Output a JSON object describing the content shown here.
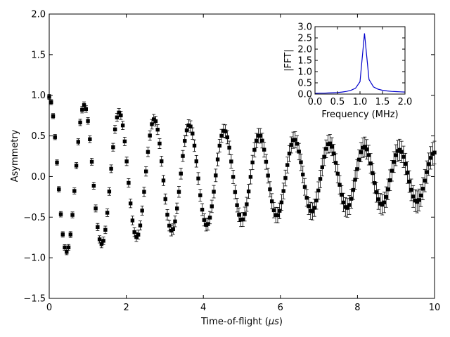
{
  "chart_data": [
    {
      "type": "scatter",
      "title": "",
      "xlabel": "Time-of-flight (",
      "xlabel_unit": "μs",
      "xlabel_close": ")",
      "ylabel": "Asymmetry",
      "xlim": [
        0,
        10
      ],
      "ylim": [
        -1.5,
        2.0
      ],
      "x_ticks": [
        0,
        2,
        4,
        6,
        8,
        10
      ],
      "x_tick_labels": [
        "0",
        "2",
        "4",
        "6",
        "8",
        "10"
      ],
      "y_ticks": [
        -1.5,
        -1.0,
        -0.5,
        0.0,
        0.5,
        1.0,
        1.5,
        2.0
      ],
      "y_tick_labels": [
        "−1.5",
        "−1.0",
        "−0.5",
        "0.0",
        "0.5",
        "1.0",
        "1.5",
        "2.0"
      ],
      "grid": false,
      "marker": "square",
      "marker_color": "#000000",
      "series": [
        {
          "x_start": 0.0,
          "x_end": 10.0,
          "n_points": 200,
          "amplitude": 0.98,
          "decay_rate": 0.12,
          "frequency_mhz": 1.1,
          "error_start": 0.03,
          "error_end": 0.14
        }
      ]
    },
    {
      "type": "line",
      "title": "",
      "xlabel": "Frequency (MHz)",
      "ylabel": "|FFT|",
      "xlim": [
        0,
        2.0
      ],
      "ylim": [
        0,
        3.0
      ],
      "x_ticks": [
        0,
        0.5,
        1.0,
        1.5,
        2.0
      ],
      "x_tick_labels": [
        "0.0",
        "0.5",
        "1.0",
        "1.5",
        "2.0"
      ],
      "y_ticks": [
        0,
        0.5,
        1.0,
        1.5,
        2.0,
        2.5,
        3.0
      ],
      "y_tick_labels": [
        "0.0",
        "0.5",
        "1.0",
        "1.5",
        "2.0",
        "2.5",
        "3.0"
      ],
      "grid": false,
      "line_color": "#0000cc",
      "x": [
        0.0,
        0.1,
        0.2,
        0.3,
        0.4,
        0.5,
        0.6,
        0.7,
        0.8,
        0.9,
        1.0,
        1.1,
        1.2,
        1.3,
        1.4,
        1.5,
        1.6,
        1.7,
        1.8,
        1.9,
        2.0
      ],
      "y": [
        0.03,
        0.04,
        0.04,
        0.05,
        0.06,
        0.07,
        0.09,
        0.12,
        0.17,
        0.26,
        0.55,
        2.7,
        0.65,
        0.32,
        0.22,
        0.17,
        0.14,
        0.12,
        0.11,
        0.1,
        0.09
      ]
    }
  ]
}
